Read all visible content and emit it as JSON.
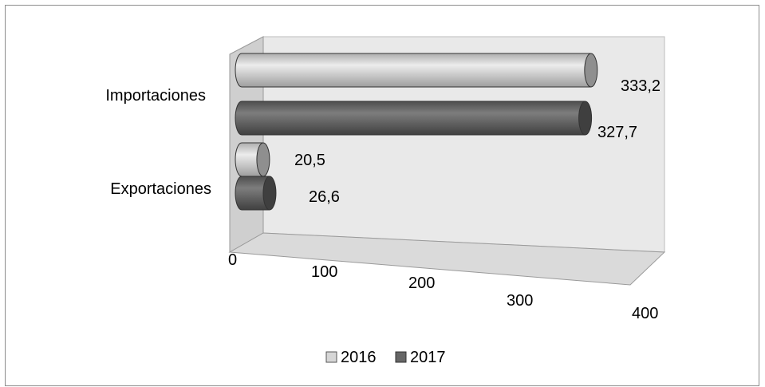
{
  "chart_data": {
    "type": "bar",
    "orientation": "horizontal",
    "style": "3d-cylinder",
    "categories": [
      "Importaciones",
      "Exportaciones"
    ],
    "series": [
      {
        "name": "2016",
        "values": [
          333.2,
          20.5
        ],
        "color": "#d6d6d6"
      },
      {
        "name": "2017",
        "values": [
          327.7,
          26.6
        ],
        "color": "#666666"
      }
    ],
    "data_labels": [
      [
        "333,2",
        "20,5"
      ],
      [
        "327,7",
        "26,6"
      ]
    ],
    "x_ticks": [
      "0",
      "100",
      "200",
      "300",
      "400"
    ],
    "xlim": [
      0,
      400
    ],
    "title": "",
    "xlabel": "",
    "ylabel": "",
    "grid": false,
    "legend": "bottom"
  },
  "legend": {
    "items": [
      "2016",
      "2017"
    ]
  }
}
